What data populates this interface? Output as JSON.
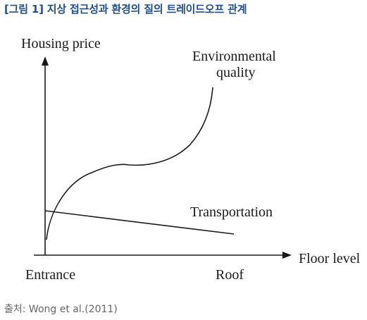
{
  "header": {
    "title": "[그림 1] 지상 접근성과 환경의 질의 트레이드오프 관계"
  },
  "diagram": {
    "y_axis_label": "Housing price",
    "x_axis_label": "Floor level",
    "x_start_label": "Entrance",
    "x_end_label": "Roof",
    "curves": [
      {
        "label_line1": "Environmental",
        "label_line2": "quality"
      },
      {
        "label_line1": "Transportation"
      }
    ]
  },
  "footer": {
    "source": "출처: Wong et al.(2011)"
  }
}
